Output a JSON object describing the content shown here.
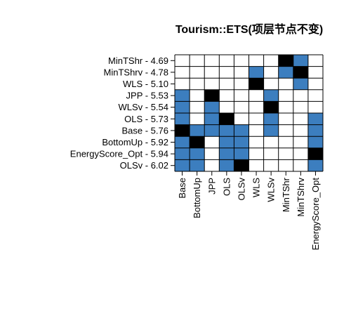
{
  "chart_data": {
    "type": "heatmap",
    "title": "Tourism::ETS(项层节点不变)",
    "row_labels": [
      "MinTShr - 4.69",
      "MinTShrv - 4.78",
      "WLS - 5.10",
      "JPP - 5.53",
      "WLSv - 5.54",
      "OLS - 5.73",
      "Base - 5.76",
      "BottomUp - 5.92",
      "EnergyScore_Opt - 5.94",
      "OLSv - 6.02"
    ],
    "column_labels": [
      "Base",
      "BottomUp",
      "JPP",
      "OLS",
      "OLSv",
      "WLS",
      "WLSv",
      "MinTShr",
      "MinTShrv",
      "EnergyScore_Opt"
    ],
    "matrix_legend": {
      "0": "white",
      "1": "blue",
      "2": "black"
    },
    "values": [
      [
        0,
        0,
        0,
        0,
        0,
        0,
        0,
        2,
        1,
        0
      ],
      [
        0,
        0,
        0,
        0,
        0,
        1,
        0,
        1,
        2,
        0
      ],
      [
        0,
        0,
        0,
        0,
        0,
        2,
        0,
        0,
        1,
        0
      ],
      [
        1,
        0,
        2,
        0,
        0,
        0,
        1,
        0,
        0,
        0
      ],
      [
        1,
        0,
        1,
        0,
        0,
        0,
        2,
        0,
        0,
        0
      ],
      [
        1,
        0,
        1,
        2,
        0,
        0,
        1,
        0,
        0,
        1
      ],
      [
        2,
        1,
        1,
        1,
        1,
        0,
        1,
        0,
        0,
        1
      ],
      [
        1,
        2,
        0,
        1,
        1,
        0,
        0,
        0,
        0,
        1
      ],
      [
        1,
        1,
        0,
        1,
        1,
        0,
        0,
        0,
        0,
        2
      ],
      [
        1,
        1,
        0,
        1,
        2,
        0,
        0,
        0,
        0,
        1
      ]
    ],
    "colors": {
      "white": "#ffffff",
      "blue": "#3c7ebf",
      "black": "#000000",
      "grid": "#000000"
    }
  }
}
